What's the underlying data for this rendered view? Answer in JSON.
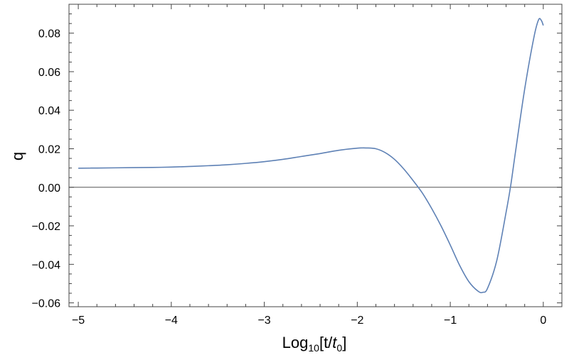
{
  "chart_data": {
    "type": "line",
    "title": "",
    "xlabel": "Log10[t/t0]",
    "xlabel_parts": {
      "main": "Log",
      "sub_base": "10",
      "open": "[t/",
      "var": "t",
      "sub_var": "0",
      "close": "]"
    },
    "ylabel": "q",
    "xlim": [
      -5.1,
      0.2
    ],
    "ylim": [
      -0.062,
      0.095
    ],
    "x_ticks": [
      -5,
      -4,
      -3,
      -2,
      -1,
      0
    ],
    "x_tick_labels": [
      "−5",
      "−4",
      "−3",
      "−2",
      "−1",
      "0"
    ],
    "y_ticks": [
      -0.06,
      -0.04,
      -0.02,
      0.0,
      0.02,
      0.04,
      0.06,
      0.08
    ],
    "y_tick_labels": [
      "−0.06",
      "−0.04",
      "−0.02",
      "0.00",
      "0.02",
      "0.04",
      "0.06",
      "0.08"
    ],
    "grid": false,
    "zero_line": true,
    "series": [
      {
        "color": "#5e81b5",
        "x": [
          -5.0,
          -4.8,
          -4.6,
          -4.4,
          -4.2,
          -4.0,
          -3.8,
          -3.6,
          -3.4,
          -3.2,
          -3.0,
          -2.8,
          -2.6,
          -2.4,
          -2.2,
          -2.0,
          -1.9,
          -1.8,
          -1.7,
          -1.6,
          -1.5,
          -1.4,
          -1.3,
          -1.2,
          -1.1,
          -1.0,
          -0.9,
          -0.8,
          -0.7,
          -0.65,
          -0.6,
          -0.5,
          -0.4,
          -0.35,
          -0.3,
          -0.2,
          -0.1,
          -0.05,
          -0.02,
          0.0
        ],
        "y": [
          0.0099,
          0.01,
          0.0101,
          0.0102,
          0.0103,
          0.0105,
          0.0108,
          0.0112,
          0.0117,
          0.0124,
          0.0133,
          0.0145,
          0.016,
          0.0175,
          0.0192,
          0.0203,
          0.0204,
          0.02,
          0.018,
          0.0145,
          0.0095,
          0.0035,
          -0.003,
          -0.011,
          -0.02,
          -0.03,
          -0.0405,
          -0.049,
          -0.054,
          -0.0545,
          -0.0525,
          -0.038,
          -0.013,
          0.001,
          0.018,
          0.051,
          0.078,
          0.087,
          0.0865,
          0.084
        ]
      }
    ]
  }
}
